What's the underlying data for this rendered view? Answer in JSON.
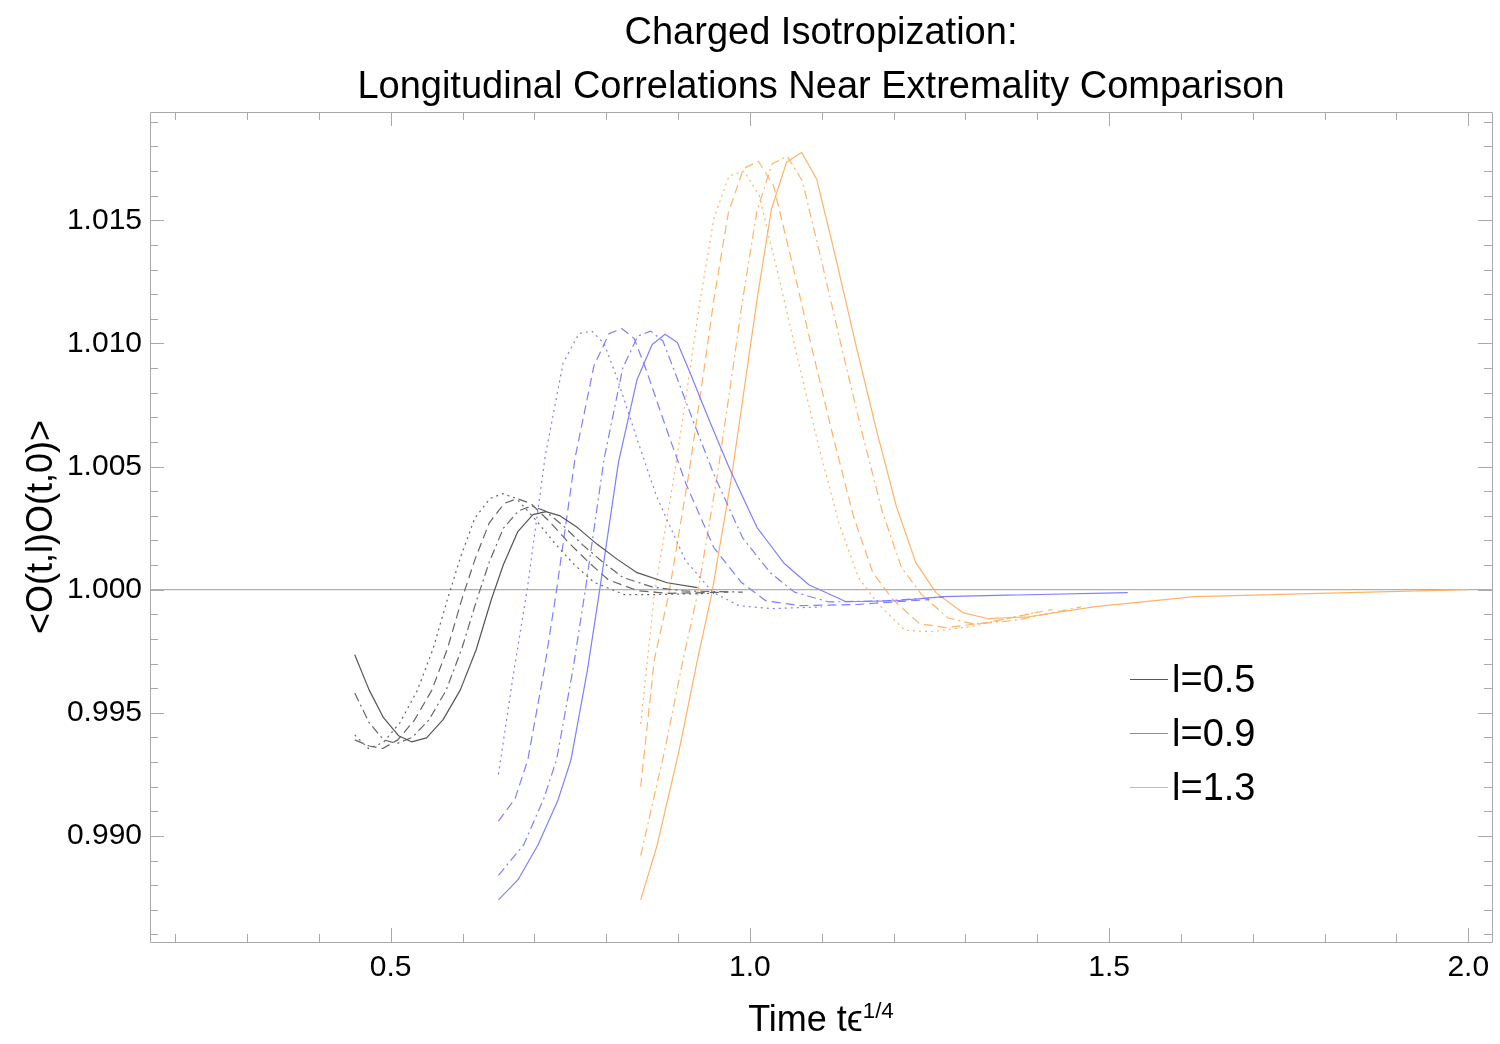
{
  "chart_data": {
    "type": "line",
    "title": "Charged Isotropization:\nLongitudinal Correlations Near Extremality Comparison",
    "xlabel": "Time tϵ$^{1/4}$",
    "ylabel": "<O(t,l)O(t,0)>",
    "xlim": [
      0.165,
      2.033
    ],
    "ylim": [
      0.98569,
      1.0194
    ],
    "xticks": [
      {
        "value": 0.2,
        "label": null
      },
      {
        "value": 0.3,
        "label": null
      },
      {
        "value": 0.4,
        "label": null
      },
      0.5,
      {
        "value": 0.6,
        "label": null
      },
      {
        "value": 0.7,
        "label": null
      },
      {
        "value": 0.8,
        "label": null
      },
      {
        "value": 0.9,
        "label": null
      },
      {
        "value": 1,
        "label": "1.0"
      },
      {
        "value": 1.1,
        "label": null
      },
      {
        "value": 1.2,
        "label": null
      },
      {
        "value": 1.3,
        "label": null
      },
      {
        "value": 1.4,
        "label": null
      },
      1.5,
      {
        "value": 1.6,
        "label": null
      },
      {
        "value": 1.7,
        "label": null
      },
      {
        "value": 1.8,
        "label": null
      },
      {
        "value": 1.9,
        "label": null
      },
      {
        "value": 2,
        "label": "2.0"
      }
    ],
    "yticks": [
      {
        "value": 0.986,
        "label": null
      },
      {
        "value": 0.987,
        "label": null
      },
      {
        "value": 0.988,
        "label": null
      },
      {
        "value": 0.989,
        "label": null
      },
      {
        "value": 0.99,
        "label": "0.990"
      },
      {
        "value": 0.991,
        "label": null
      },
      {
        "value": 0.992,
        "label": null
      },
      {
        "value": 0.993,
        "label": null
      },
      {
        "value": 0.994,
        "label": null
      },
      0.995,
      {
        "value": 0.996,
        "label": null
      },
      {
        "value": 0.997,
        "label": null
      },
      {
        "value": 0.998,
        "label": null
      },
      {
        "value": 0.999,
        "label": null
      },
      {
        "value": 1,
        "label": "1.000"
      },
      {
        "value": 1.001,
        "label": null
      },
      {
        "value": 1.002,
        "label": null
      },
      {
        "value": 1.003,
        "label": null
      },
      {
        "value": 1.004,
        "label": null
      },
      1.005,
      {
        "value": 1.006,
        "label": null
      },
      {
        "value": 1.007,
        "label": null
      },
      {
        "value": 1.008,
        "label": null
      },
      {
        "value": 1.009,
        "label": null
      },
      {
        "value": 1.01,
        "label": "1.010"
      },
      {
        "value": 1.011,
        "label": null
      },
      {
        "value": 1.012,
        "label": null
      },
      {
        "value": 1.013,
        "label": null
      },
      {
        "value": 1.014,
        "label": null
      },
      1.015,
      {
        "value": 1.016,
        "label": null
      },
      {
        "value": 1.017,
        "label": null
      },
      {
        "value": 1.018,
        "label": null
      },
      {
        "value": 1.019,
        "label": null
      }
    ],
    "grid": false,
    "legend": "bottom right",
    "marker": "none",
    "ref_lines": [
      {
        "axis": "y",
        "value": 1,
        "color": "#b0b0b0"
      }
    ],
    "series": [
      {
        "name": "l=0.5",
        "color": "#555555",
        "line_style": "solid",
        "x": [
          0.45,
          0.47,
          0.49,
          0.511,
          0.529,
          0.55,
          0.573,
          0.597,
          0.619,
          0.64,
          0.657,
          0.677,
          0.698,
          0.716,
          0.735,
          0.76,
          0.788,
          0.816,
          0.843,
          0.885,
          0.927
        ],
        "values": [
          0.99736,
          0.99593,
          0.9948,
          0.99407,
          0.99382,
          0.99398,
          0.99472,
          0.99593,
          0.99756,
          0.99959,
          1.00102,
          1.00236,
          1.00305,
          1.00317,
          1.00301,
          1.00252,
          1.00183,
          1.00122,
          1.00069,
          1.00028,
          1.00008
        ]
      },
      {
        "color": "#666666",
        "line_style": "dashdot",
        "x": [
          0.45,
          0.47,
          0.49,
          0.509,
          0.53,
          0.553,
          0.577,
          0.599,
          0.62,
          0.637,
          0.657,
          0.678,
          0.696,
          0.715,
          0.74,
          0.768,
          0.796,
          0.823,
          0.865,
          0.907,
          0.99
        ],
        "values": [
          0.9958,
          0.9946,
          0.9939,
          0.99375,
          0.994,
          0.9947,
          0.9959,
          0.9976,
          0.9996,
          1.0011,
          1.0025,
          1.0032,
          1.0034,
          1.0032,
          1.0026,
          1.0018,
          1.0011,
          1.0005,
          1.0001,
          0.99995,
          0.9999
        ]
      },
      {
        "color": "#666666",
        "line_style": "dashed",
        "x": [
          0.45,
          0.47,
          0.489,
          0.51,
          0.533,
          0.557,
          0.579,
          0.6,
          0.617,
          0.637,
          0.658,
          0.676,
          0.695,
          0.72,
          0.748,
          0.776,
          0.803,
          0.845,
          0.887,
          0.97
        ],
        "values": [
          0.9939,
          0.99365,
          0.99355,
          0.9939,
          0.9947,
          0.9959,
          0.9976,
          0.9997,
          1.0012,
          1.0027,
          1.0035,
          1.0037,
          1.0035,
          1.0028,
          1.0019,
          1.0011,
          1.0004,
          0.99995,
          0.99985,
          0.9999
        ]
      },
      {
        "color": "#666666",
        "line_style": "dotted",
        "x": [
          0.45,
          0.469,
          0.49,
          0.513,
          0.537,
          0.559,
          0.58,
          0.597,
          0.617,
          0.638,
          0.656,
          0.675,
          0.7,
          0.728,
          0.756,
          0.783,
          0.825,
          0.867,
          0.95
        ],
        "values": [
          0.9941,
          0.99355,
          0.9938,
          0.9946,
          0.9959,
          0.9976,
          0.9997,
          1.0013,
          1.0029,
          1.0037,
          1.0039,
          1.0037,
          1.0029,
          1.0019,
          1.001,
          1.0003,
          0.9998,
          0.9998,
          0.99985
        ]
      },
      {
        "name": "l=0.9",
        "color": "#7f7fff",
        "line_style": "solid",
        "x": [
          0.65,
          0.677,
          0.705,
          0.733,
          0.751,
          0.774,
          0.791,
          0.817,
          0.843,
          0.864,
          0.882,
          0.899,
          0.916,
          0.943,
          0.971,
          1.01,
          1.048,
          1.082,
          1.134,
          1.204,
          1.269,
          1.526
        ],
        "values": [
          0.9874,
          0.98821,
          0.98963,
          0.99146,
          0.99309,
          0.99675,
          1.0,
          1.00516,
          1.00854,
          1.00996,
          1.01037,
          1.01004,
          1.00886,
          1.00691,
          1.00496,
          1.00252,
          1.00106,
          1.0002,
          0.99951,
          0.99955,
          0.99972,
          0.99988
        ]
      },
      {
        "color": "#7f7fff",
        "line_style": "dashdot",
        "x": [
          0.65,
          0.685,
          0.713,
          0.731,
          0.754,
          0.771,
          0.797,
          0.823,
          0.844,
          0.862,
          0.879,
          0.896,
          0.923,
          0.951,
          0.99,
          1.028,
          1.062,
          1.11,
          1.19,
          1.27
        ],
        "values": [
          0.9884,
          0.98963,
          0.9915,
          0.9931,
          0.9968,
          1.0,
          1.0053,
          1.009,
          1.0103,
          1.0105,
          1.0101,
          1.0088,
          1.0067,
          1.0046,
          1.0021,
          1.0007,
          0.9999,
          0.9995,
          0.99955,
          0.9997
        ]
      },
      {
        "color": "#7f7fff",
        "line_style": "dashed",
        "x": [
          0.65,
          0.673,
          0.691,
          0.714,
          0.731,
          0.757,
          0.783,
          0.804,
          0.822,
          0.839,
          0.856,
          0.883,
          0.911,
          0.95,
          0.988,
          1.022,
          1.07,
          1.15,
          1.25
        ],
        "values": [
          0.9906,
          0.9915,
          0.9931,
          0.9968,
          1.0,
          1.0054,
          1.0091,
          1.0104,
          1.0106,
          1.0102,
          1.0089,
          1.0066,
          1.0043,
          1.0017,
          1.0003,
          0.99955,
          0.99935,
          0.9994,
          0.9996
        ]
      },
      {
        "color": "#7f7fff",
        "line_style": "dotted",
        "x": [
          0.65,
          0.671,
          0.69,
          0.715,
          0.74,
          0.762,
          0.78,
          0.797,
          0.815,
          0.842,
          0.87,
          0.91,
          0.948,
          0.985,
          1.03,
          1.1
        ],
        "values": [
          0.9925,
          0.9966,
          1.0,
          1.0054,
          1.0092,
          1.0104,
          1.0105,
          1.01,
          1.0086,
          1.0062,
          1.0038,
          1.0012,
          0.9999,
          0.99935,
          0.99923,
          0.9993
        ]
      },
      {
        "name": "l=1.3",
        "color": "#ffb366",
        "line_style": "solid",
        "x": [
          0.848,
          0.871,
          0.902,
          0.927,
          0.947,
          0.975,
          0.996,
          1.01,
          1.03,
          1.051,
          1.072,
          1.093,
          1.121,
          1.148,
          1.176,
          1.204,
          1.231,
          1.259,
          1.296,
          1.332,
          1.388,
          1.481,
          1.619,
          2.0
        ],
        "values": [
          0.9874,
          0.98963,
          0.99354,
          0.99715,
          0.99984,
          1.00467,
          1.00894,
          1.01179,
          1.01545,
          1.01736,
          1.01776,
          1.01667,
          1.01329,
          1.00988,
          1.0065,
          1.00337,
          1.0011,
          0.99988,
          0.99907,
          0.99882,
          0.9989,
          0.99931,
          0.99972,
          1.0
        ]
      },
      {
        "color": "#ffb366",
        "line_style": "dashdot",
        "x": [
          0.848,
          0.882,
          0.907,
          0.927,
          0.955,
          0.976,
          0.99,
          1.01,
          1.031,
          1.052,
          1.073,
          1.101,
          1.128,
          1.156,
          1.184,
          1.211,
          1.239,
          1.276,
          1.312,
          1.368,
          1.461
        ],
        "values": [
          0.9892,
          0.99354,
          0.99715,
          0.9998,
          1.0047,
          1.0089,
          1.0118,
          1.0154,
          1.0173,
          1.0176,
          1.0166,
          1.0132,
          1.0098,
          1.0064,
          1.0032,
          1.0009,
          0.9998,
          0.99885,
          0.9986,
          0.99875,
          0.9993
        ]
      },
      {
        "color": "#ffb366",
        "line_style": "dashed",
        "x": [
          0.848,
          0.867,
          0.887,
          0.915,
          0.936,
          0.95,
          0.97,
          0.991,
          1.012,
          1.033,
          1.061,
          1.088,
          1.116,
          1.144,
          1.171,
          1.199,
          1.236,
          1.272,
          1.328,
          1.421
        ],
        "values": [
          0.992,
          0.99715,
          0.9998,
          1.0047,
          1.0089,
          1.0118,
          1.0153,
          1.0171,
          1.0174,
          1.0164,
          1.013,
          1.0096,
          1.0062,
          1.003,
          1.0007,
          0.9996,
          0.99862,
          0.99846,
          0.99865,
          0.9992
        ]
      },
      {
        "color": "#ffb366",
        "line_style": "dotted",
        "x": [
          0.848,
          0.867,
          0.895,
          0.916,
          0.93,
          0.95,
          0.971,
          0.992,
          1.013,
          1.041,
          1.068,
          1.096,
          1.124,
          1.151,
          1.179,
          1.216,
          1.252,
          1.308,
          1.401
        ],
        "values": [
          0.99455,
          0.9998,
          1.0047,
          1.0088,
          1.0116,
          1.0151,
          1.0168,
          1.017,
          1.016,
          1.0126,
          1.0092,
          1.0058,
          1.0027,
          1.0005,
          0.9994,
          0.99835,
          0.99829,
          0.9985,
          0.9991
        ]
      }
    ]
  }
}
